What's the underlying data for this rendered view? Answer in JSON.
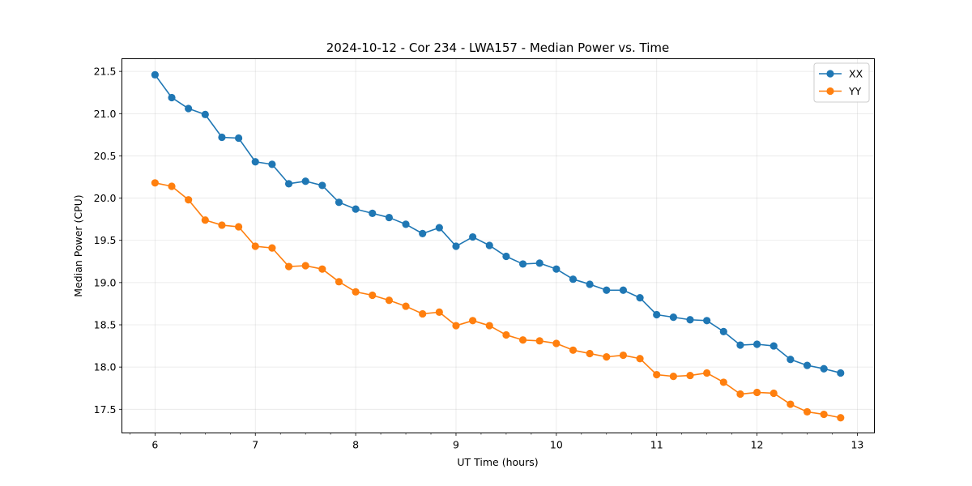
{
  "chart_data": {
    "type": "line",
    "title": "2024-10-12 - Cor 234 - LWA157 - Median Power vs. Time",
    "xlabel": "UT Time (hours)",
    "ylabel": "Median Power (CPU)",
    "xlim": [
      5.67,
      13.17
    ],
    "ylim": [
      17.22,
      21.65
    ],
    "x_ticks": [
      6,
      7,
      8,
      9,
      10,
      11,
      12,
      13
    ],
    "x_tick_labels": [
      "6",
      "7",
      "8",
      "9",
      "10",
      "11",
      "12",
      "13"
    ],
    "y_ticks": [
      17.5,
      18.0,
      18.5,
      19.0,
      19.5,
      20.0,
      20.5,
      21.0,
      21.5
    ],
    "y_tick_labels": [
      "17.5",
      "18.0",
      "18.5",
      "19.0",
      "19.5",
      "20.0",
      "20.5",
      "21.0",
      "21.5"
    ],
    "grid": true,
    "legend_position": "top-right",
    "x": [
      6.0,
      6.1667,
      6.3333,
      6.5,
      6.6667,
      6.8333,
      7.0,
      7.1667,
      7.3333,
      7.5,
      7.6667,
      7.8333,
      8.0,
      8.1667,
      8.3333,
      8.5,
      8.6667,
      8.8333,
      9.0,
      9.1667,
      9.3333,
      9.5,
      9.6667,
      9.8333,
      10.0,
      10.1667,
      10.3333,
      10.5,
      10.6667,
      10.8333,
      11.0,
      11.1667,
      11.3333,
      11.5,
      11.6667,
      11.8333,
      12.0,
      12.1667,
      12.3333,
      12.5,
      12.6667,
      12.8333
    ],
    "series": [
      {
        "name": "XX",
        "color": "#1f77b4",
        "values": [
          21.46,
          21.19,
          21.06,
          20.99,
          20.72,
          20.71,
          20.43,
          20.4,
          20.17,
          20.2,
          20.15,
          19.95,
          19.87,
          19.82,
          19.77,
          19.69,
          19.58,
          19.65,
          19.43,
          19.54,
          19.44,
          19.31,
          19.22,
          19.23,
          19.16,
          19.04,
          18.98,
          18.91,
          18.91,
          18.82,
          18.62,
          18.59,
          18.56,
          18.55,
          18.42,
          18.26,
          18.27,
          18.25,
          18.09,
          18.02,
          17.98,
          17.93
        ]
      },
      {
        "name": "YY",
        "color": "#ff7f0e",
        "values": [
          20.18,
          20.14,
          19.98,
          19.74,
          19.68,
          19.66,
          19.43,
          19.41,
          19.19,
          19.2,
          19.16,
          19.01,
          18.89,
          18.85,
          18.79,
          18.72,
          18.63,
          18.65,
          18.49,
          18.55,
          18.49,
          18.38,
          18.32,
          18.31,
          18.28,
          18.2,
          18.16,
          18.12,
          18.14,
          18.1,
          17.91,
          17.89,
          17.9,
          17.93,
          17.82,
          17.68,
          17.7,
          17.69,
          17.56,
          17.47,
          17.44,
          17.4
        ]
      }
    ]
  }
}
